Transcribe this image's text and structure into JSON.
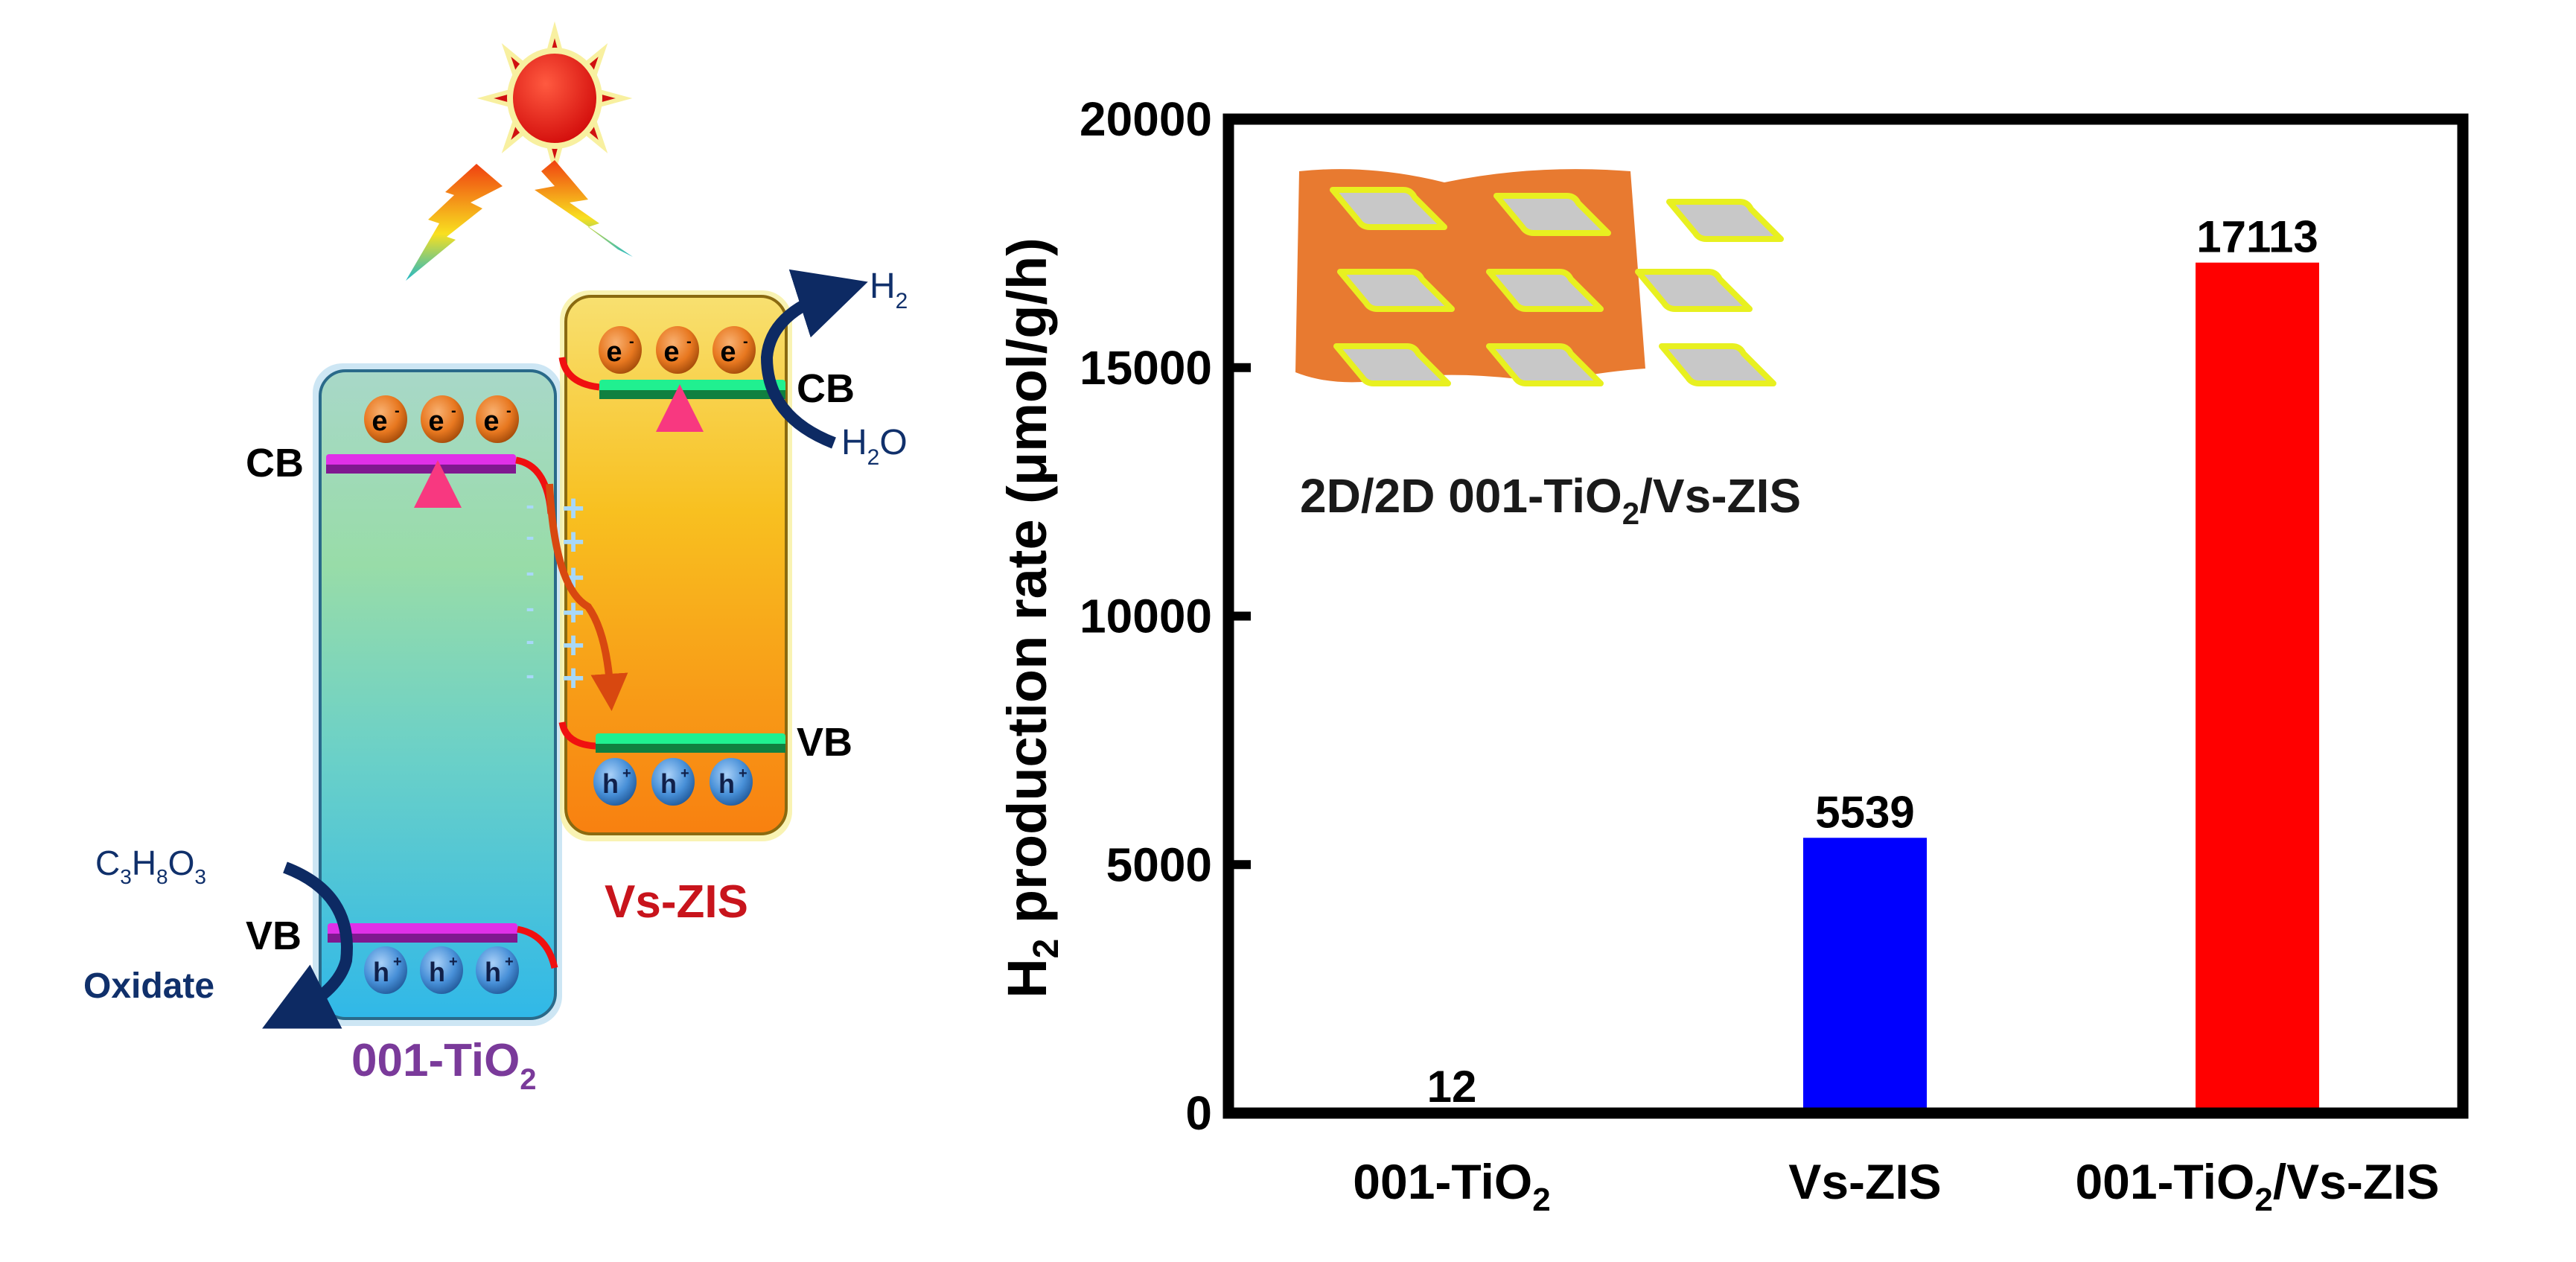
{
  "diagram": {
    "materials": {
      "left": "001-TiO",
      "left_sub": "2",
      "right": "Vs-ZIS"
    },
    "band_labels": {
      "tio2_cb": "CB",
      "tio2_vb": "VB",
      "zis_cb": "CB",
      "zis_vb": "VB"
    },
    "carriers": {
      "electron": "e",
      "electron_sup": "-",
      "hole": "h",
      "hole_sup": "+"
    },
    "reactions": {
      "h2_main": "H",
      "h2_sub": "2",
      "h2o_h": "H",
      "h2o_sub": "2",
      "h2o_o": "O",
      "glycerol": [
        "C",
        "3",
        "H",
        "8",
        "O",
        "3"
      ],
      "oxidate": "Oxidate"
    },
    "interface_charges": {
      "minus": "-",
      "plus": "+"
    },
    "colors": {
      "tio2_label": "#7a3a9a",
      "zis_label": "#c8141c",
      "reaction_text": "#10306b",
      "arrow": "#0d2a63",
      "tio2_band": "#d020d0",
      "zis_band": "#20d080",
      "sun": "#e81010"
    }
  },
  "chart_data": {
    "type": "bar",
    "title": "",
    "categories": [
      {
        "main": "001-TiO",
        "sub": "2",
        "tail": ""
      },
      {
        "main": "Vs-ZIS",
        "sub": "",
        "tail": ""
      },
      {
        "main": "001-TiO",
        "sub": "2",
        "tail": "/Vs-ZIS"
      }
    ],
    "values": [
      12,
      5539,
      17113
    ],
    "data_labels": [
      "12",
      "5539",
      "17113"
    ],
    "colors": [
      "#0000ff",
      "#0000ff",
      "#ff0000"
    ],
    "xlabel": "",
    "ylabel": {
      "pre": "H",
      "sub": "2",
      "post": " production rate (μmol/g/h)"
    },
    "ylim": [
      0,
      20000
    ],
    "yticks": [
      0,
      5000,
      10000,
      15000,
      20000
    ],
    "ytick_labels": [
      "0",
      "5000",
      "10000",
      "15000",
      "20000"
    ],
    "grid": false,
    "legend": "none",
    "inset": {
      "caption_pre": "2D/2D 001-TiO",
      "caption_sub": "2",
      "caption_post": "/Vs-ZIS",
      "sheet_color": "#e87a30",
      "platelet_color": "#c8c8c8",
      "platelet_edge": "#e8f020"
    }
  }
}
